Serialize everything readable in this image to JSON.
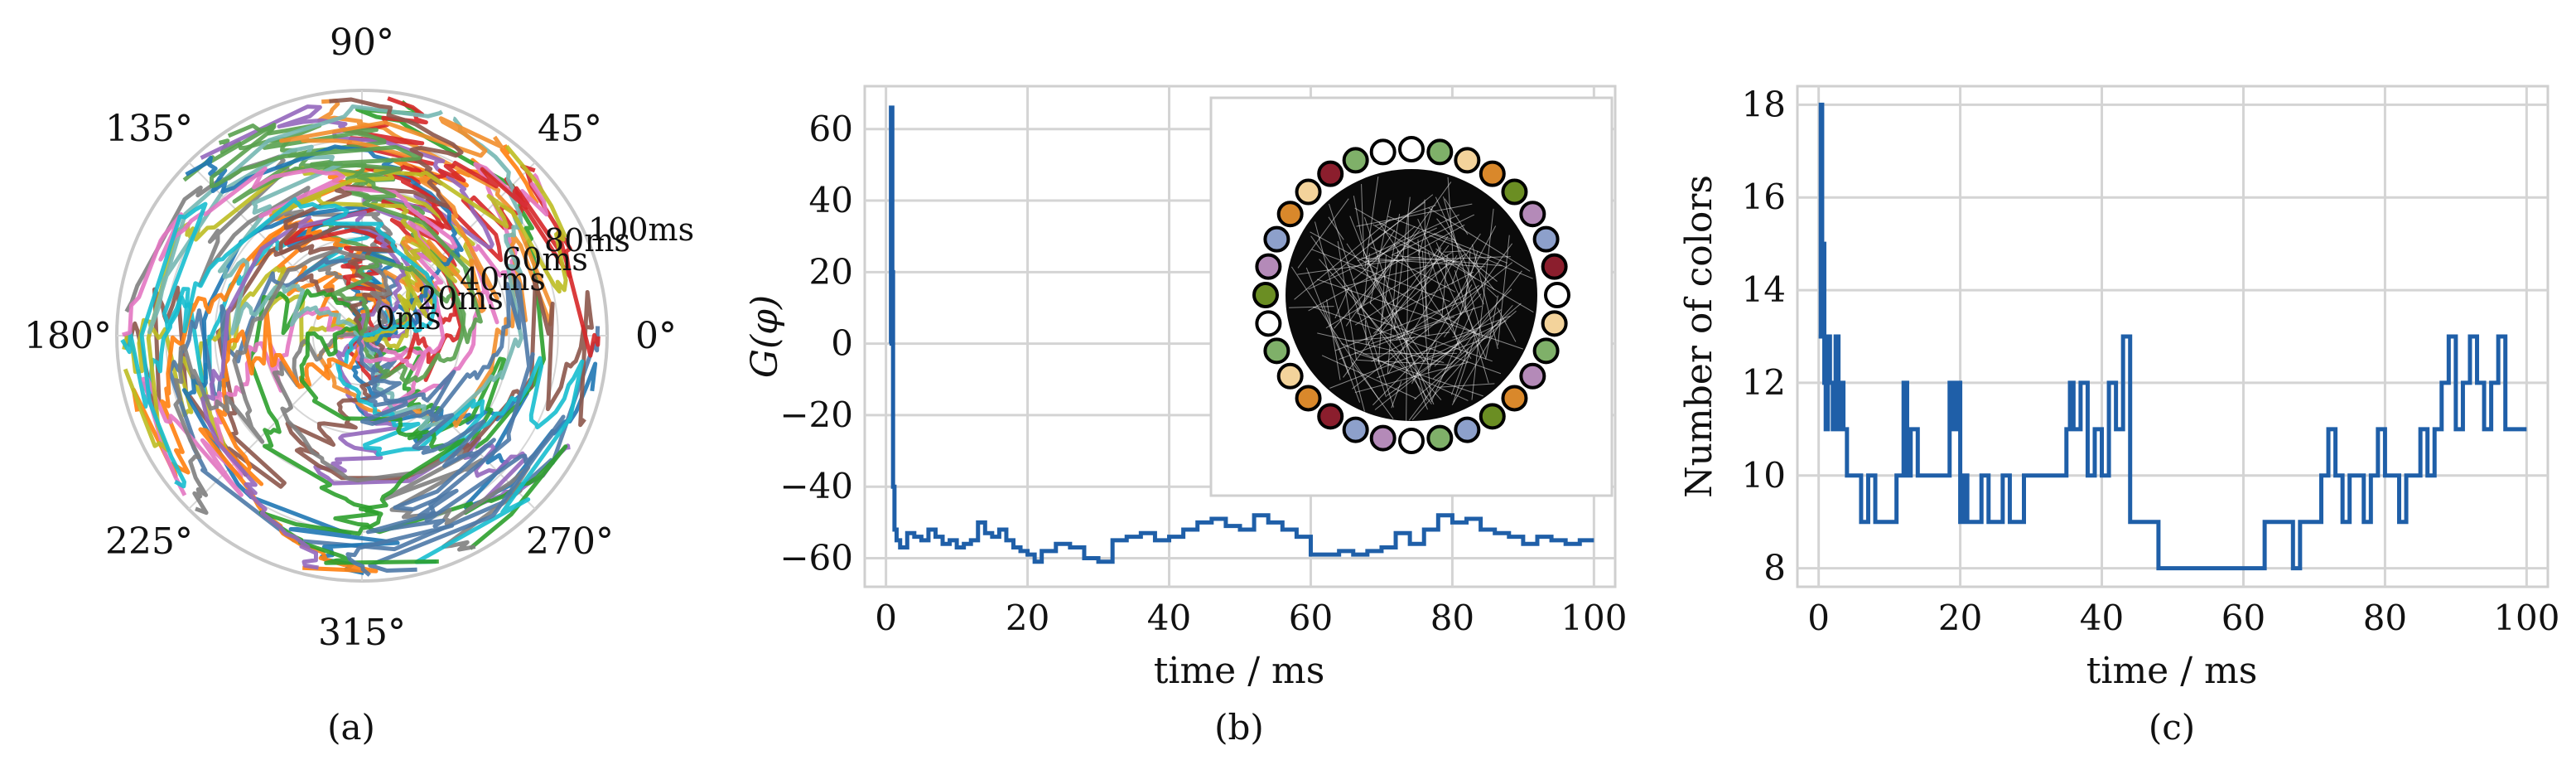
{
  "panels": {
    "a": {
      "caption": "(a)"
    },
    "b": {
      "caption": "(b)"
    },
    "c": {
      "caption": "(c)"
    }
  },
  "chart_data": [
    {
      "type": "polar-line",
      "panel": "(a)",
      "angle_ticks": [
        "0°",
        "45°",
        "90°",
        "135°",
        "180°",
        "225°",
        "270°",
        "315°"
      ],
      "radial_ticks": [
        "0ms",
        "20ms",
        "40ms",
        "60ms",
        "80ms",
        "100ms"
      ],
      "radial_range_ms": [
        0,
        100
      ],
      "grid": true,
      "series_count_estimate": 40,
      "colors": [
        "#1f77b4",
        "#ff7f0e",
        "#2ca02c",
        "#d62728",
        "#9467bd",
        "#8c564b",
        "#e377c2",
        "#7f7f7f",
        "#bcbd22",
        "#17becf",
        "#4e79a7",
        "#59a14f",
        "#f28e2b",
        "#76b7b2"
      ]
    },
    {
      "type": "line",
      "panel": "(b)",
      "xlabel": "time / ms",
      "ylabel": "G(φ)",
      "xlim": [
        -3,
        103
      ],
      "ylim": [
        -68,
        72
      ],
      "xticks": [
        0,
        20,
        40,
        60,
        80,
        100
      ],
      "yticks": [
        -60,
        -40,
        -20,
        0,
        20,
        40,
        60
      ],
      "grid": true,
      "line_color": "#1f5fa8",
      "series": [
        {
          "x": [
            0.5,
            0.7,
            0.9,
            1.0,
            1.2,
            1.5,
            2,
            3,
            4,
            5,
            6,
            7,
            8,
            9,
            10,
            11,
            12,
            13,
            14,
            15,
            16,
            17,
            18,
            19,
            20,
            21,
            22,
            24,
            26,
            28,
            30,
            32,
            34,
            36,
            38,
            40,
            42,
            44,
            46,
            48,
            50,
            52,
            54,
            56,
            58,
            60,
            62,
            64,
            66,
            68,
            70,
            72,
            74,
            76,
            78,
            80,
            82,
            84,
            86,
            88,
            90,
            92,
            94,
            96,
            98,
            100
          ],
          "values": [
            0,
            66,
            20,
            -40,
            -52,
            -55,
            -57,
            -53,
            -54,
            -55,
            -52,
            -54,
            -56,
            -55,
            -57,
            -56,
            -55,
            -50,
            -53,
            -54,
            -52,
            -55,
            -57,
            -58,
            -59,
            -61,
            -58,
            -56,
            -57,
            -60,
            -61,
            -55,
            -54,
            -53,
            -55,
            -54,
            -52,
            -50,
            -49,
            -51,
            -52,
            -48,
            -50,
            -52,
            -54,
            -59,
            -59,
            -58,
            -59,
            -58,
            -57,
            -53,
            -56,
            -52,
            -48,
            -50,
            -49,
            -52,
            -53,
            -54,
            -56,
            -54,
            -55,
            -56,
            -55,
            -55
          ]
        }
      ],
      "inset": {
        "type": "graph",
        "node_count": 32,
        "node_colors": [
          "#ffffff",
          "#7fb069",
          "#f3d39b",
          "#d9882b",
          "#6b8e23",
          "#b48ab8",
          "#8da0cb",
          "#8b1e2d",
          "#ffffff",
          "#f3d39b",
          "#7fb069",
          "#b48ab8",
          "#d9882b",
          "#6b8e23",
          "#8da0cb",
          "#7fb069",
          "#ffffff",
          "#b48ab8",
          "#8da0cb",
          "#8b1e2d",
          "#d9882b",
          "#f3d39b",
          "#7fb069",
          "#ffffff",
          "#6b8e23",
          "#b48ab8",
          "#8da0cb",
          "#d9882b",
          "#f3d39b",
          "#8b1e2d",
          "#7fb069",
          "#ffffff"
        ]
      }
    },
    {
      "type": "step",
      "panel": "(c)",
      "xlabel": "time / ms",
      "ylabel": "Number of colors",
      "xlim": [
        -3,
        103
      ],
      "ylim": [
        7.6,
        18.4
      ],
      "xticks": [
        0,
        20,
        40,
        60,
        80,
        100
      ],
      "yticks": [
        8,
        10,
        12,
        14,
        16,
        18
      ],
      "grid": true,
      "line_color": "#1f5fa8",
      "series": [
        {
          "x": [
            0,
            0.3,
            0.5,
            0.8,
            1.0,
            1.3,
            1.6,
            2.0,
            2.4,
            2.8,
            3.2,
            3.5,
            4.0,
            5.0,
            6.0,
            7.0,
            8.0,
            9.0,
            10.0,
            11.0,
            12.0,
            12.5,
            13.0,
            14.0,
            15.0,
            16.0,
            17.0,
            18.0,
            18.5,
            19.0,
            19.5,
            20.0,
            20.5,
            21.0,
            22.0,
            23.0,
            24.0,
            25.0,
            26.0,
            27.0,
            28.0,
            29.0,
            30.0,
            31.0,
            32.0,
            33.0,
            34.0,
            35.0,
            35.5,
            36.0,
            37.0,
            38.0,
            39.0,
            40.0,
            41.0,
            42.0,
            43.0,
            44.0,
            45.0,
            46.0,
            47.0,
            48.0,
            50.0,
            55.0,
            60.0,
            62.0,
            63.0,
            65.0,
            66.0,
            67.0,
            68.0,
            69.0,
            70.0,
            71.0,
            72.0,
            73.0,
            74.0,
            75.0,
            76.0,
            77.0,
            78.0,
            79.0,
            80.0,
            81.0,
            82.0,
            83.0,
            84.0,
            85.0,
            86.0,
            87.0,
            88.0,
            89.0,
            90.0,
            91.0,
            92.0,
            93.0,
            94.0,
            95.0,
            96.0,
            97.0,
            98.0,
            99.0,
            100.0
          ],
          "values": [
            13,
            18,
            15,
            12,
            11,
            13,
            12,
            11,
            13,
            11,
            12,
            11,
            10,
            10,
            9,
            10,
            9,
            9,
            9,
            10,
            12,
            10,
            11,
            10,
            10,
            10,
            10,
            10,
            12,
            11,
            12,
            9,
            10,
            9,
            9,
            10,
            9,
            9,
            10,
            9,
            9,
            10,
            10,
            10,
            10,
            10,
            10,
            11,
            12,
            11,
            12,
            10,
            11,
            10,
            12,
            11,
            13,
            9,
            9,
            9,
            9,
            8,
            8,
            8,
            8,
            8,
            9,
            9,
            9,
            8,
            9,
            9,
            9,
            10,
            11,
            10,
            9,
            10,
            10,
            9,
            10,
            11,
            10,
            10,
            9,
            10,
            10,
            11,
            10,
            11,
            12,
            13,
            11,
            12,
            13,
            12,
            11,
            12,
            13,
            11,
            11,
            11,
            11
          ]
        }
      ]
    }
  ]
}
